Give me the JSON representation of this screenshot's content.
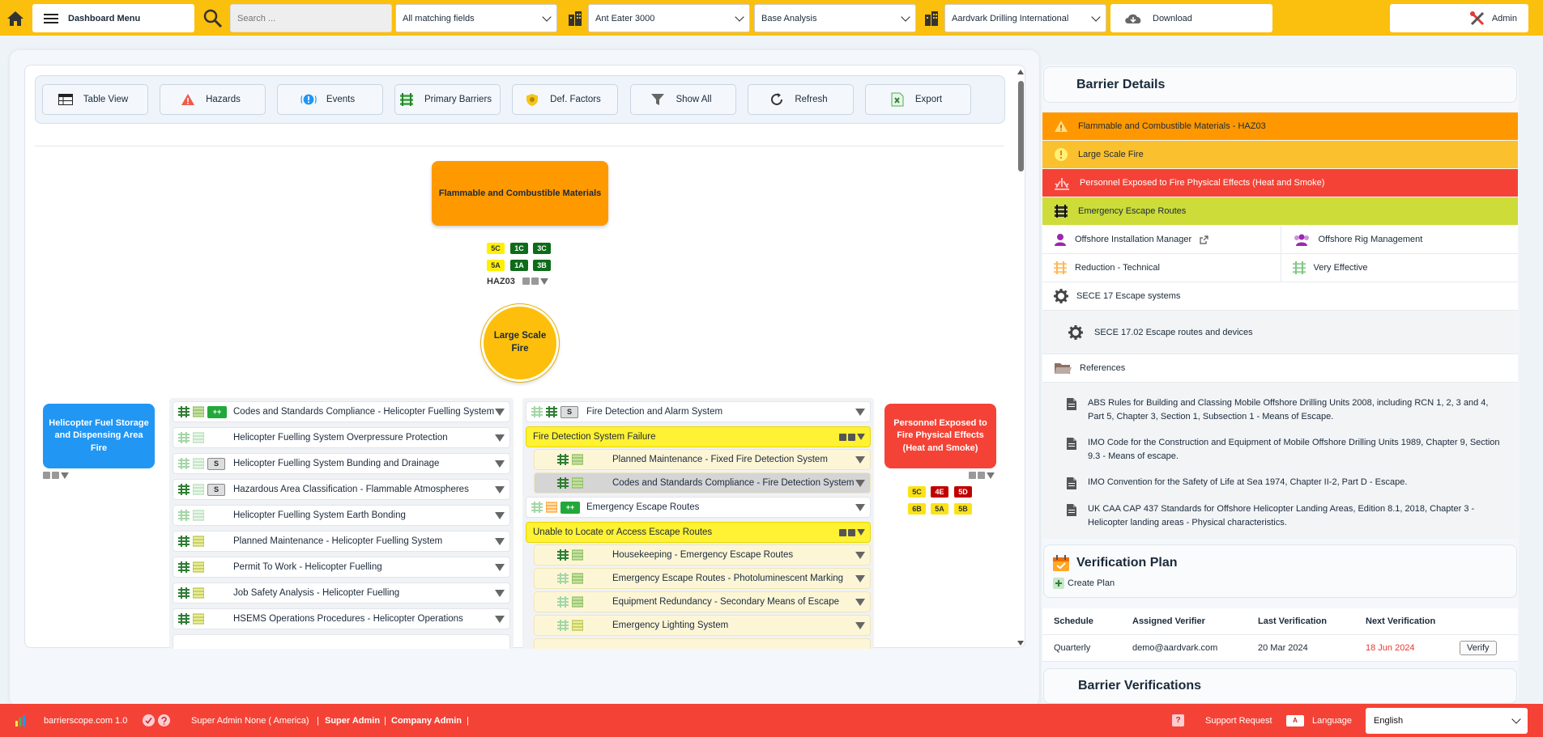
{
  "topbar": {
    "menu_label": "Dashboard Menu",
    "search_placeholder": "Search ...",
    "fields_select": "All matching fields",
    "asset_select": "Ant Eater 3000",
    "analysis_select": "Base Analysis",
    "company_select": "Aardvark Drilling International",
    "download_label": "Download",
    "admin_label": "Admin"
  },
  "toolbar": {
    "buttons": [
      {
        "label": "Table View",
        "icon": "table-icon"
      },
      {
        "label": "Hazards",
        "icon": "warning-icon"
      },
      {
        "label": "Events",
        "icon": "event-icon"
      },
      {
        "label": "Primary Barriers",
        "icon": "barrier-icon"
      },
      {
        "label": "Def. Factors",
        "icon": "shield-icon"
      },
      {
        "label": "Show All",
        "icon": "filter-icon"
      },
      {
        "label": "Refresh",
        "icon": "refresh-icon"
      },
      {
        "label": "Export",
        "icon": "excel-icon"
      }
    ]
  },
  "bowtie": {
    "hazard": {
      "label": "Flammable and Combustible Materials",
      "code": "HAZ03",
      "badges": [
        "5C",
        "1C",
        "3C",
        "5A",
        "1A",
        "3B"
      ]
    },
    "top_event": {
      "label": "Large Scale Fire"
    },
    "threat": {
      "label": "Helicopter Fuel Storage and Dispensing Area Fire"
    },
    "consequence": {
      "label": "Personnel Exposed to Fire Physical Effects (Heat and Smoke)",
      "badges": [
        "5C",
        "4E",
        "5D",
        "6B",
        "5A",
        "5B"
      ]
    },
    "left_barriers": [
      {
        "label": "Codes and Standards Compliance - Helicopter Fuelling System",
        "badge": "++"
      },
      {
        "label": "Helicopter Fuelling System Overpressure Protection",
        "badge": ""
      },
      {
        "label": "Helicopter Fuelling System Bunding and Drainage",
        "badge": "S"
      },
      {
        "label": "Hazardous Area Classification - Flammable Atmospheres",
        "badge": "S"
      },
      {
        "label": "Helicopter Fuelling System Earth Bonding",
        "badge": ""
      },
      {
        "label": "Planned Maintenance - Helicopter Fuelling System",
        "badge": ""
      },
      {
        "label": "Permit To Work - Helicopter Fuelling",
        "badge": ""
      },
      {
        "label": "Job Safety Analysis - Helicopter Fuelling",
        "badge": ""
      },
      {
        "label": "HSEMS Operations Procedures - Helicopter Operations",
        "badge": ""
      }
    ],
    "right_barriers": [
      {
        "type": "barrier",
        "label": "Fire Detection and Alarm System",
        "badge": "S"
      },
      {
        "type": "escalation",
        "label": "Fire Detection System Failure"
      },
      {
        "type": "sub",
        "label": "Planned Maintenance - Fixed Fire Detection System"
      },
      {
        "type": "sub-grey",
        "label": "Codes and Standards Compliance - Fire Detection System"
      },
      {
        "type": "barrier",
        "label": "Emergency Escape Routes",
        "badge": "++"
      },
      {
        "type": "escalation",
        "label": "Unable to Locate or Access Escape Routes"
      },
      {
        "type": "sub",
        "label": "Housekeeping - Emergency Escape Routes"
      },
      {
        "type": "sub",
        "label": "Emergency Escape Routes - Photoluminescent Marking"
      },
      {
        "type": "sub",
        "label": "Equipment Redundancy - Secondary Means of Escape"
      },
      {
        "type": "sub",
        "label": "Emergency Lighting System"
      }
    ]
  },
  "barrier_details": {
    "title": "Barrier Details",
    "bands": [
      {
        "label": "Flammable and Combustible Materials - HAZ03",
        "color": "#ff9800",
        "icon": "warning-icon"
      },
      {
        "label": "Large Scale Fire",
        "color": "#fbc02d",
        "icon": "alert-circle-icon"
      },
      {
        "label": "Personnel Exposed to Fire Physical Effects (Heat and Smoke)",
        "color": "#f44336",
        "icon": "explosion-icon"
      },
      {
        "label": "Emergency Escape Routes",
        "color": "#cddc39",
        "icon": "barrier-icon"
      }
    ],
    "owner": "Offshore Installation Manager",
    "group": "Offshore Rig Management",
    "type": "Reduction - Technical",
    "effectiveness": "Very Effective",
    "sece": "SECE 17 Escape systems",
    "sece_sub": "SECE 17.02 Escape routes and devices",
    "references_label": "References",
    "references": [
      "ABS Rules for Building and Classing Mobile Offshore Drilling Units 2008, including RCN 1, 2, 3 and 4, Part 5, Chapter 3, Section 1, Subsection 1 - Means of Escape.",
      "IMO Code for the Construction and Equipment of Mobile Offshore Drilling Units 1989, Chapter 9, Section 9.3 - Means of escape.",
      "IMO Convention for the Safety of Life at Sea 1974, Chapter II-2, Part D - Escape.",
      "UK CAA CAP 437 Standards for Offshore Helicopter Landing Areas, Edition 8.1, 2018, Chapter 3 - Helicopter landing areas - Physical characteristics."
    ]
  },
  "verification_plan": {
    "title": "Verification Plan",
    "create_label": "Create Plan",
    "headers": [
      "Schedule",
      "Assigned Verifier",
      "Last Verification",
      "Next Verification"
    ],
    "row": {
      "schedule": "Quarterly",
      "verifier": "demo@aardvark.com",
      "last": "20 Mar 2024",
      "next": "18 Jun 2024",
      "verify_label": "Verify"
    }
  },
  "barrier_verifications": {
    "title": "Barrier Verifications"
  },
  "footer": {
    "brand": "barrierscope.com 1.0",
    "user": "Super Admin None ( America)",
    "role1": "Super Admin",
    "role2": "Company Admin",
    "support": "Support Request",
    "language_label": "Language",
    "language_value": "English"
  }
}
